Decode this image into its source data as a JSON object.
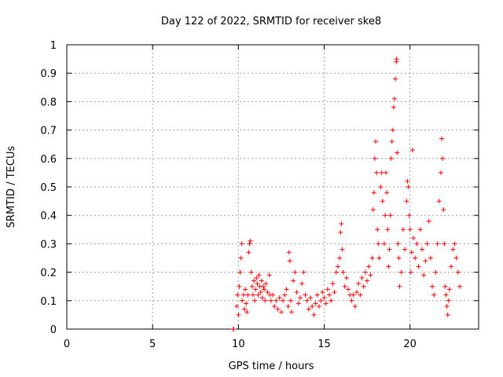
{
  "chart_data": {
    "type": "scatter",
    "title": "Day 122 of 2022, SRMTID for receiver ske8",
    "xlabel": "GPS time / hours",
    "ylabel": "SRMTID / TECUs",
    "xlim": [
      0,
      24
    ],
    "ylim": [
      0,
      1
    ],
    "xticks": [
      0,
      5,
      10,
      15,
      20
    ],
    "yticks": [
      0,
      0.1,
      0.2,
      0.3,
      0.4,
      0.5,
      0.6,
      0.7,
      0.8,
      0.9,
      1
    ],
    "xtick_labels": [
      "0",
      "5",
      "10",
      "15",
      "20"
    ],
    "ytick_labels": [
      "0",
      "0.1",
      "0.2",
      "0.3",
      "0.4",
      "0.5",
      "0.6",
      "0.7",
      "0.8",
      "0.9",
      "1"
    ],
    "grid": true,
    "marker": "+",
    "color": "#ff0000",
    "series": [
      {
        "name": "ske8",
        "points": [
          [
            9.7,
            0.0
          ],
          [
            9.72,
            0.0
          ],
          [
            9.9,
            0.08
          ],
          [
            9.95,
            0.12
          ],
          [
            10.0,
            0.05
          ],
          [
            10.05,
            0.15
          ],
          [
            10.1,
            0.2
          ],
          [
            10.15,
            0.25
          ],
          [
            10.2,
            0.3
          ],
          [
            10.22,
            0.1
          ],
          [
            10.3,
            0.12
          ],
          [
            10.35,
            0.07
          ],
          [
            10.4,
            0.14
          ],
          [
            10.45,
            0.09
          ],
          [
            10.5,
            0.06
          ],
          [
            10.55,
            0.12
          ],
          [
            10.6,
            0.27
          ],
          [
            10.65,
            0.3
          ],
          [
            10.7,
            0.31
          ],
          [
            10.75,
            0.2
          ],
          [
            10.8,
            0.15
          ],
          [
            10.85,
            0.12
          ],
          [
            10.9,
            0.17
          ],
          [
            10.95,
            0.1
          ],
          [
            11.0,
            0.14
          ],
          [
            11.05,
            0.18
          ],
          [
            11.1,
            0.16
          ],
          [
            11.15,
            0.12
          ],
          [
            11.2,
            0.19
          ],
          [
            11.25,
            0.15
          ],
          [
            11.3,
            0.13
          ],
          [
            11.35,
            0.17
          ],
          [
            11.4,
            0.11
          ],
          [
            11.45,
            0.15
          ],
          [
            11.5,
            0.14
          ],
          [
            11.55,
            0.1
          ],
          [
            11.6,
            0.16
          ],
          [
            11.7,
            0.13
          ],
          [
            11.8,
            0.19
          ],
          [
            11.85,
            0.12
          ],
          [
            11.9,
            0.1
          ],
          [
            12.0,
            0.12
          ],
          [
            12.1,
            0.08
          ],
          [
            12.2,
            0.1
          ],
          [
            12.3,
            0.07
          ],
          [
            12.4,
            0.11
          ],
          [
            12.5,
            0.06
          ],
          [
            12.6,
            0.1
          ],
          [
            12.7,
            0.12
          ],
          [
            12.8,
            0.14
          ],
          [
            12.9,
            0.08
          ],
          [
            12.95,
            0.27
          ],
          [
            13.0,
            0.24
          ],
          [
            13.05,
            0.1
          ],
          [
            13.1,
            0.06
          ],
          [
            13.2,
            0.17
          ],
          [
            13.3,
            0.2
          ],
          [
            13.4,
            0.13
          ],
          [
            13.5,
            0.09
          ],
          [
            13.6,
            0.11
          ],
          [
            13.7,
            0.16
          ],
          [
            13.8,
            0.2
          ],
          [
            13.9,
            0.12
          ],
          [
            14.0,
            0.1
          ],
          [
            14.1,
            0.07
          ],
          [
            14.2,
            0.11
          ],
          [
            14.3,
            0.08
          ],
          [
            14.4,
            0.05
          ],
          [
            14.5,
            0.09
          ],
          [
            14.6,
            0.12
          ],
          [
            14.7,
            0.08
          ],
          [
            14.8,
            0.1
          ],
          [
            14.9,
            0.13
          ],
          [
            15.0,
            0.11
          ],
          [
            15.1,
            0.09
          ],
          [
            15.2,
            0.14
          ],
          [
            15.3,
            0.12
          ],
          [
            15.4,
            0.1
          ],
          [
            15.5,
            0.16
          ],
          [
            15.6,
            0.13
          ],
          [
            15.7,
            0.2
          ],
          [
            15.8,
            0.22
          ],
          [
            15.9,
            0.25
          ],
          [
            15.95,
            0.34
          ],
          [
            16.0,
            0.37
          ],
          [
            16.05,
            0.28
          ],
          [
            16.1,
            0.2
          ],
          [
            16.2,
            0.15
          ],
          [
            16.3,
            0.18
          ],
          [
            16.4,
            0.14
          ],
          [
            16.5,
            0.12
          ],
          [
            16.6,
            0.1
          ],
          [
            16.7,
            0.12
          ],
          [
            16.8,
            0.08
          ],
          [
            16.9,
            0.13
          ],
          [
            17.0,
            0.16
          ],
          [
            17.1,
            0.12
          ],
          [
            17.2,
            0.18
          ],
          [
            17.3,
            0.15
          ],
          [
            17.4,
            0.2
          ],
          [
            17.5,
            0.17
          ],
          [
            17.6,
            0.22
          ],
          [
            17.7,
            0.19
          ],
          [
            17.8,
            0.25
          ],
          [
            17.85,
            0.42
          ],
          [
            17.9,
            0.48
          ],
          [
            17.95,
            0.6
          ],
          [
            18.0,
            0.66
          ],
          [
            18.05,
            0.55
          ],
          [
            18.1,
            0.35
          ],
          [
            18.15,
            0.3
          ],
          [
            18.2,
            0.25
          ],
          [
            18.3,
            0.5
          ],
          [
            18.35,
            0.55
          ],
          [
            18.4,
            0.45
          ],
          [
            18.5,
            0.3
          ],
          [
            18.55,
            0.4
          ],
          [
            18.6,
            0.55
          ],
          [
            18.65,
            0.48
          ],
          [
            18.7,
            0.35
          ],
          [
            18.75,
            0.22
          ],
          [
            18.8,
            0.28
          ],
          [
            18.85,
            0.4
          ],
          [
            18.9,
            0.6
          ],
          [
            18.95,
            0.66
          ],
          [
            19.0,
            0.7
          ],
          [
            19.05,
            0.78
          ],
          [
            19.1,
            0.81
          ],
          [
            19.15,
            0.88
          ],
          [
            19.2,
            0.94
          ],
          [
            19.22,
            0.95
          ],
          [
            19.25,
            0.62
          ],
          [
            19.3,
            0.3
          ],
          [
            19.35,
            0.25
          ],
          [
            19.4,
            0.15
          ],
          [
            19.5,
            0.2
          ],
          [
            19.6,
            0.35
          ],
          [
            19.7,
            0.28
          ],
          [
            19.8,
            0.45
          ],
          [
            19.85,
            0.52
          ],
          [
            19.9,
            0.5
          ],
          [
            19.95,
            0.4
          ],
          [
            20.0,
            0.35
          ],
          [
            20.05,
            0.2
          ],
          [
            20.1,
            0.27
          ],
          [
            20.15,
            0.63
          ],
          [
            20.2,
            0.32
          ],
          [
            20.3,
            0.25
          ],
          [
            20.4,
            0.3
          ],
          [
            20.5,
            0.22
          ],
          [
            20.6,
            0.35
          ],
          [
            20.7,
            0.28
          ],
          [
            20.8,
            0.19
          ],
          [
            20.9,
            0.24
          ],
          [
            21.0,
            0.3
          ],
          [
            21.1,
            0.38
          ],
          [
            21.2,
            0.25
          ],
          [
            21.3,
            0.15
          ],
          [
            21.4,
            0.12
          ],
          [
            21.5,
            0.2
          ],
          [
            21.6,
            0.3
          ],
          [
            21.7,
            0.45
          ],
          [
            21.8,
            0.55
          ],
          [
            21.85,
            0.67
          ],
          [
            21.9,
            0.6
          ],
          [
            21.95,
            0.42
          ],
          [
            22.0,
            0.3
          ],
          [
            22.05,
            0.15
          ],
          [
            22.1,
            0.12
          ],
          [
            22.15,
            0.08
          ],
          [
            22.2,
            0.05
          ],
          [
            22.25,
            0.1
          ],
          [
            22.3,
            0.14
          ],
          [
            22.4,
            0.22
          ],
          [
            22.5,
            0.28
          ],
          [
            22.6,
            0.3
          ],
          [
            22.7,
            0.25
          ],
          [
            22.8,
            0.2
          ],
          [
            22.9,
            0.15
          ]
        ]
      }
    ]
  }
}
